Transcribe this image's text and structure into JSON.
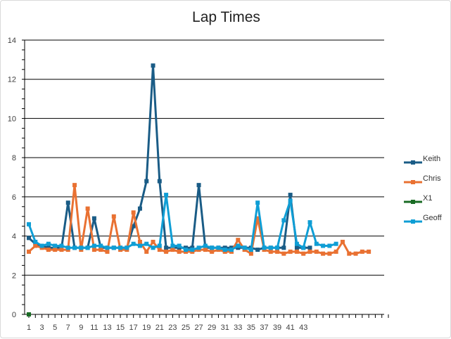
{
  "chart_data": {
    "type": "line",
    "title": "Lap Times",
    "xlabel": "",
    "ylabel": "",
    "ylim": [
      0,
      14
    ],
    "yticks": [
      "0",
      "2",
      "4",
      "6",
      "8",
      "10",
      "12",
      "14"
    ],
    "x_tick_labels": [
      "1",
      "3",
      "5",
      "7",
      "9",
      "11",
      "13",
      "15",
      "17",
      "19",
      "21",
      "23",
      "25",
      "27",
      "29",
      "31",
      "33",
      "35",
      "37",
      "39",
      "41",
      "43"
    ],
    "x_count": 56,
    "grid": true,
    "legend_position": "right",
    "series": [
      {
        "name": "Keith",
        "color": "#1a5c86",
        "values": [
          3.9,
          3.6,
          3.5,
          3.4,
          3.4,
          3.4,
          5.7,
          3.4,
          3.4,
          3.4,
          4.9,
          3.4,
          3.4,
          3.4,
          3.4,
          3.4,
          4.5,
          5.4,
          6.8,
          12.7,
          6.8,
          3.4,
          3.4,
          3.4,
          3.4,
          3.4,
          6.6,
          3.4,
          3.4,
          3.4,
          3.4,
          3.4,
          3.4,
          3.4,
          3.4,
          3.3,
          3.4,
          3.4,
          3.4,
          3.4,
          6.1,
          3.4,
          3.4,
          3.4
        ]
      },
      {
        "name": "Chris",
        "color": "#e97132",
        "values": [
          3.2,
          3.5,
          3.4,
          3.3,
          3.3,
          3.3,
          3.3,
          6.6,
          3.3,
          5.4,
          3.3,
          3.3,
          3.2,
          5.0,
          3.3,
          3.3,
          5.2,
          3.7,
          3.2,
          3.7,
          3.3,
          3.2,
          3.3,
          3.2,
          3.2,
          3.2,
          3.3,
          3.3,
          3.2,
          3.3,
          3.2,
          3.2,
          3.8,
          3.3,
          3.1,
          4.9,
          3.3,
          3.2,
          3.2,
          3.1,
          3.2,
          3.2,
          3.1,
          3.2,
          3.2,
          3.1,
          3.1,
          3.2,
          3.7,
          3.1,
          3.1,
          3.2,
          3.2
        ]
      },
      {
        "name": "X1",
        "color": "#196b24",
        "values": [
          0
        ]
      },
      {
        "name": "Geoff",
        "color": "#0f9ed5",
        "values": [
          4.6,
          3.7,
          3.5,
          3.6,
          3.5,
          3.5,
          3.4,
          3.4,
          3.4,
          3.4,
          3.5,
          3.5,
          3.4,
          3.4,
          3.4,
          3.4,
          3.6,
          3.5,
          3.6,
          3.4,
          3.5,
          6.1,
          3.5,
          3.5,
          3.3,
          3.3,
          3.4,
          3.5,
          3.4,
          3.4,
          3.3,
          3.3,
          3.5,
          3.4,
          3.3,
          5.7,
          3.4,
          3.4,
          3.4,
          4.8,
          5.8,
          3.6,
          3.4,
          4.7,
          3.6,
          3.5,
          3.5,
          3.6
        ]
      }
    ]
  }
}
